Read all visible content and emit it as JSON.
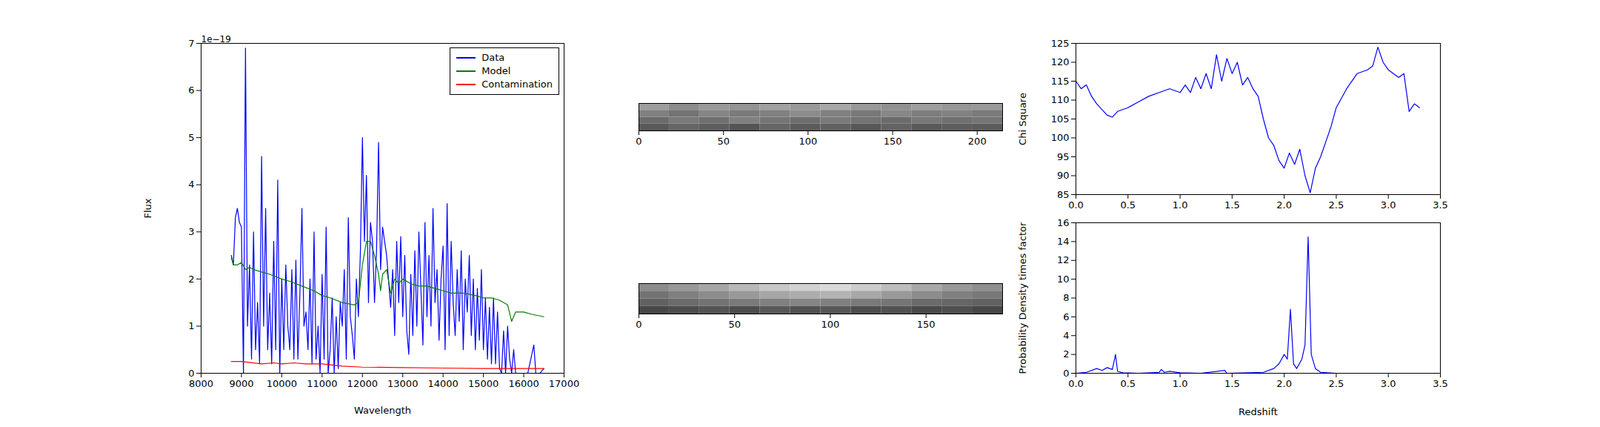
{
  "chart_data": [
    {
      "type": "line",
      "xlabel": "Wavelength",
      "ylabel": "Flux",
      "annotation": "1e−19",
      "legend": "upper right",
      "grid": false,
      "xlim": [
        8000,
        17000
      ],
      "xticks": [
        8000,
        9000,
        10000,
        11000,
        12000,
        13000,
        14000,
        15000,
        16000,
        17000
      ],
      "ylim": [
        0,
        7e-19
      ],
      "yticks": [
        {
          "value": 0,
          "label": "0"
        },
        {
          "value": 1e-19,
          "label": "1"
        },
        {
          "value": 2e-19,
          "label": "2"
        },
        {
          "value": 3e-19,
          "label": "3"
        },
        {
          "value": 4e-19,
          "label": "4"
        },
        {
          "value": 5e-19,
          "label": "5"
        },
        {
          "value": 6e-19,
          "label": "6"
        },
        {
          "value": 7e-19,
          "label": "7"
        }
      ],
      "series": [
        {
          "name": "Data",
          "color": "#0000ff",
          "x": [
            8750,
            8800,
            8850,
            8900,
            8950,
            9000,
            9050,
            9100,
            9150,
            9200,
            9250,
            9300,
            9350,
            9400,
            9450,
            9500,
            9550,
            9600,
            9650,
            9700,
            9750,
            9800,
            9850,
            9900,
            9950,
            10000,
            10050,
            10100,
            10150,
            10200,
            10250,
            10300,
            10350,
            10400,
            10450,
            10500,
            10550,
            10600,
            10650,
            10700,
            10750,
            10800,
            10850,
            10900,
            10950,
            11000,
            11050,
            11100,
            11150,
            11200,
            11250,
            11300,
            11350,
            11400,
            11450,
            11500,
            11550,
            11600,
            11650,
            11700,
            11750,
            11800,
            11850,
            11900,
            11950,
            12000,
            12050,
            12100,
            12150,
            12200,
            12250,
            12300,
            12350,
            12400,
            12450,
            12500,
            12600,
            12700,
            12750,
            12800,
            12850,
            12900,
            12950,
            13000,
            13050,
            13100,
            13150,
            13200,
            13250,
            13300,
            13350,
            13400,
            13450,
            13500,
            13550,
            13600,
            13650,
            13700,
            13750,
            13800,
            13850,
            13900,
            13950,
            14000,
            14050,
            14100,
            14150,
            14200,
            14250,
            14300,
            14350,
            14400,
            14450,
            14500,
            14550,
            14600,
            14650,
            14700,
            14750,
            14800,
            14850,
            14900,
            14950,
            15000,
            15050,
            15100,
            15150,
            15200,
            15250,
            15300,
            15350,
            15400,
            15450,
            15500,
            15550,
            15600,
            15650,
            15700,
            15750,
            15800,
            15900,
            16000,
            16100,
            16200,
            16250,
            16300,
            16400,
            16500
          ],
          "values": [
            2.5e-19,
            2.3e-19,
            3.3e-19,
            3.5e-19,
            3.2e-19,
            3.1e-19,
            0,
            6.9e-19,
            1e-19,
            2.3e-19,
            3e-20,
            3e-19,
            5e-20,
            1.5e-19,
            2e-20,
            4.6e-19,
            1e-19,
            3.5e-19,
            5e-20,
            1.7e-19,
            2e-20,
            2.8e-19,
            5e-20,
            4.1e-19,
            0,
            2e-19,
            5e-20,
            2.3e-19,
            1e-19,
            5e-20,
            2.2e-19,
            3e-20,
            2.4e-19,
            3e-20,
            1.7e-19,
            3.5e-19,
            1e-19,
            1.3e-19,
            5e-20,
            2e-19,
            2e-20,
            3e-19,
            3e-20,
            1e-19,
            0,
            2.1e-19,
            3e-20,
            3.1e-19,
            0,
            5e-20,
            1.6e-19,
            0,
            1.2e-19,
            1e-20,
            1.5e-19,
            1e-19,
            2.2e-19,
            3e-20,
            3.3e-19,
            1.2e-19,
            8e-20,
            3e-20,
            2e-19,
            1.2e-19,
            2.6e-19,
            5e-19,
            2.8e-19,
            4.2e-19,
            1.5e-19,
            3.2e-19,
            2.8e-19,
            1.5e-19,
            2.6e-19,
            4.9e-19,
            2.2e-19,
            3.1e-19,
            2.5e-19,
            1.4e-19,
            2.2e-19,
            8e-20,
            2.8e-19,
            1.5e-19,
            2.9e-19,
            1.2e-19,
            2.5e-19,
            9e-20,
            4e-20,
            2.1e-19,
            8e-20,
            2.6e-19,
            1e-19,
            3e-19,
            1.8e-19,
            6e-20,
            3.2e-19,
            1.2e-19,
            2.5e-19,
            1e-19,
            3.5e-19,
            1.5e-19,
            2.2e-19,
            7e-20,
            2e-19,
            2.7e-19,
            5e-20,
            3.6e-19,
            8e-20,
            2.8e-19,
            1.5e-19,
            8e-20,
            2.2e-19,
            1.1e-19,
            2.6e-19,
            5e-20,
            2e-19,
            1.3e-19,
            2.5e-19,
            8e-20,
            2e-19,
            5e-20,
            1.8e-19,
            7e-20,
            2.2e-19,
            5e-20,
            1.6e-19,
            3e-20,
            1.4e-19,
            2e-20,
            1.6e-19,
            2e-20,
            1.3e-19,
            1e-20,
            0,
            9e-20,
            0,
            1e-19,
            3e-20,
            0,
            5e-20,
            0,
            0,
            0,
            0,
            4e-20,
            6e-20,
            0,
            0,
            1e-20
          ]
        },
        {
          "name": "Model",
          "color": "#008000",
          "x": [
            8750,
            8800,
            8900,
            9000,
            9100,
            9200,
            9300,
            9500,
            9700,
            10000,
            10200,
            10500,
            10800,
            11000,
            11200,
            11500,
            11800,
            11900,
            12000,
            12100,
            12200,
            12300,
            12400,
            12450,
            12500,
            12600,
            12700,
            12800,
            12900,
            13000,
            13200,
            13400,
            13600,
            13800,
            14000,
            14200,
            14500,
            14800,
            15000,
            15200,
            15400,
            15600,
            15700,
            15800,
            16000,
            16200,
            16500
          ],
          "values": [
            2.45e-19,
            2.3e-19,
            2.3e-19,
            2.35e-19,
            2.2e-19,
            2.25e-19,
            2.2e-19,
            2.15e-19,
            2.1e-19,
            2e-19,
            1.95e-19,
            1.85e-19,
            1.75e-19,
            1.65e-19,
            1.6e-19,
            1.5e-19,
            1.45e-19,
            1.5e-19,
            2.3e-19,
            2.8e-19,
            2.8e-19,
            2.5e-19,
            2.1e-19,
            1.75e-19,
            2.1e-19,
            2.2e-19,
            1.7e-19,
            2e-19,
            1.9e-19,
            2e-19,
            1.9e-19,
            1.85e-19,
            1.85e-19,
            1.8e-19,
            1.75e-19,
            1.7e-19,
            1.7e-19,
            1.65e-19,
            1.6e-19,
            1.6e-19,
            1.55e-19,
            1.45e-19,
            1.1e-19,
            1.3e-19,
            1.3e-19,
            1.25e-19,
            1.2e-19
          ]
        },
        {
          "name": "Contamination",
          "color": "#ff0000",
          "x": [
            8750,
            9000,
            9500,
            9800,
            10000,
            10300,
            10600,
            11000,
            11500,
            12000,
            13000,
            14000,
            15000,
            16000,
            16500
          ],
          "values": [
            2.5e-20,
            2.5e-20,
            2e-20,
            2.2e-20,
            2e-20,
            2.2e-20,
            2e-20,
            2e-20,
            1.5e-20,
            1.3e-20,
            1.2e-20,
            1.1e-20,
            1e-20,
            1e-20,
            1e-20
          ]
        }
      ]
    },
    {
      "type": "heatmap",
      "tick_labels": "x",
      "xlim": [
        0,
        215
      ],
      "xticks": [
        0,
        50,
        100,
        150,
        200
      ],
      "ylim": [
        0,
        16
      ],
      "zlim": [
        0,
        1
      ],
      "cells": [
        [
          0.62,
          0.55,
          0.6,
          0.58,
          0.63,
          0.6,
          0.66,
          0.6,
          0.57,
          0.62,
          0.59,
          0.6
        ],
        [
          0.5,
          0.45,
          0.52,
          0.48,
          0.5,
          0.55,
          0.5,
          0.47,
          0.53,
          0.49,
          0.51,
          0.48
        ],
        [
          0.42,
          0.48,
          0.44,
          0.5,
          0.46,
          0.43,
          0.48,
          0.45,
          0.42,
          0.47,
          0.44,
          0.46
        ],
        [
          0.35,
          0.4,
          0.37,
          0.33,
          0.4,
          0.36,
          0.38,
          0.34,
          0.39,
          0.35,
          0.37,
          0.36
        ]
      ]
    },
    {
      "type": "heatmap",
      "tick_labels": "x",
      "xlim": [
        0,
        190
      ],
      "xticks": [
        0,
        50,
        100,
        150
      ],
      "ylim": [
        0,
        16
      ],
      "zlim": [
        0,
        1
      ],
      "cells": [
        [
          0.55,
          0.6,
          0.65,
          0.72,
          0.78,
          0.82,
          0.85,
          0.8,
          0.74,
          0.66,
          0.6,
          0.56
        ],
        [
          0.45,
          0.5,
          0.55,
          0.6,
          0.65,
          0.68,
          0.7,
          0.66,
          0.6,
          0.55,
          0.5,
          0.47
        ],
        [
          0.38,
          0.42,
          0.45,
          0.48,
          0.5,
          0.52,
          0.5,
          0.48,
          0.46,
          0.42,
          0.4,
          0.38
        ],
        [
          0.28,
          0.3,
          0.33,
          0.3,
          0.35,
          0.32,
          0.34,
          0.3,
          0.32,
          0.29,
          0.31,
          0.28
        ]
      ]
    },
    {
      "type": "line",
      "ylabel": "Chi Square",
      "color": "#0000ff",
      "grid": false,
      "xlim": [
        0,
        3.5
      ],
      "xticks": [
        {
          "value": 0,
          "label": "0.0"
        },
        {
          "value": 0.5,
          "label": "0.5"
        },
        {
          "value": 1,
          "label": "1.0"
        },
        {
          "value": 1.5,
          "label": "1.5"
        },
        {
          "value": 2,
          "label": "2.0"
        },
        {
          "value": 2.5,
          "label": "2.5"
        },
        {
          "value": 3,
          "label": "3.0"
        },
        {
          "value": 3.5,
          "label": "3.5"
        }
      ],
      "ylim": [
        85,
        125
      ],
      "yticks": [
        85,
        90,
        95,
        100,
        105,
        110,
        115,
        120,
        125
      ],
      "x": [
        0,
        0.05,
        0.1,
        0.15,
        0.2,
        0.3,
        0.35,
        0.4,
        0.5,
        0.6,
        0.7,
        0.8,
        0.9,
        1.0,
        1.05,
        1.1,
        1.15,
        1.2,
        1.25,
        1.3,
        1.35,
        1.4,
        1.45,
        1.5,
        1.55,
        1.6,
        1.65,
        1.7,
        1.75,
        1.8,
        1.85,
        1.9,
        1.95,
        2.0,
        2.05,
        2.1,
        2.15,
        2.2,
        2.25,
        2.3,
        2.35,
        2.4,
        2.45,
        2.5,
        2.6,
        2.7,
        2.8,
        2.85,
        2.9,
        2.95,
        3.0,
        3.1,
        3.15,
        3.2,
        3.25,
        3.3
      ],
      "values": [
        115,
        113,
        114,
        111,
        109,
        106,
        105.5,
        107,
        108,
        109.5,
        111,
        112,
        113,
        112,
        114,
        112,
        116,
        113,
        117,
        113,
        122,
        115,
        121,
        117,
        120,
        114,
        116,
        113,
        111,
        105,
        100,
        98,
        94,
        92,
        96,
        93,
        97,
        90,
        85.5,
        92,
        95,
        99,
        103,
        108,
        113,
        117,
        118,
        119,
        124,
        120,
        118,
        116,
        117,
        107,
        109,
        108
      ]
    },
    {
      "type": "line",
      "xlabel": "Redshift",
      "ylabel": "Probability Density times factor",
      "color": "#0000ff",
      "grid": false,
      "xlim": [
        0,
        3.5
      ],
      "xticks": [
        {
          "value": 0,
          "label": "0.0"
        },
        {
          "value": 0.5,
          "label": "0.5"
        },
        {
          "value": 1,
          "label": "1.0"
        },
        {
          "value": 1.5,
          "label": "1.5"
        },
        {
          "value": 2,
          "label": "2.0"
        },
        {
          "value": 2.5,
          "label": "2.5"
        },
        {
          "value": 3,
          "label": "3.0"
        },
        {
          "value": 3.5,
          "label": "3.5"
        }
      ],
      "ylim": [
        0,
        16
      ],
      "yticks": [
        0,
        2,
        4,
        6,
        8,
        10,
        12,
        14,
        16
      ],
      "x": [
        0,
        0.1,
        0.2,
        0.25,
        0.3,
        0.35,
        0.38,
        0.4,
        0.45,
        0.6,
        0.8,
        0.82,
        0.85,
        0.9,
        1.0,
        1.2,
        1.43,
        1.45,
        1.8,
        1.9,
        1.95,
        2.0,
        2.03,
        2.06,
        2.09,
        2.12,
        2.17,
        2.2,
        2.23,
        2.26,
        2.3,
        2.35,
        2.5,
        3.3
      ],
      "values": [
        0,
        0.1,
        0.5,
        0.3,
        0.6,
        0.4,
        2.0,
        0.2,
        0.05,
        0,
        0.1,
        0.4,
        0.1,
        0.2,
        0.05,
        0,
        0.3,
        0,
        0.1,
        0.5,
        1.0,
        2.0,
        1.5,
        6.8,
        1.0,
        0.5,
        1.5,
        3,
        14.5,
        2,
        0.5,
        0.1,
        0,
        0
      ]
    }
  ]
}
